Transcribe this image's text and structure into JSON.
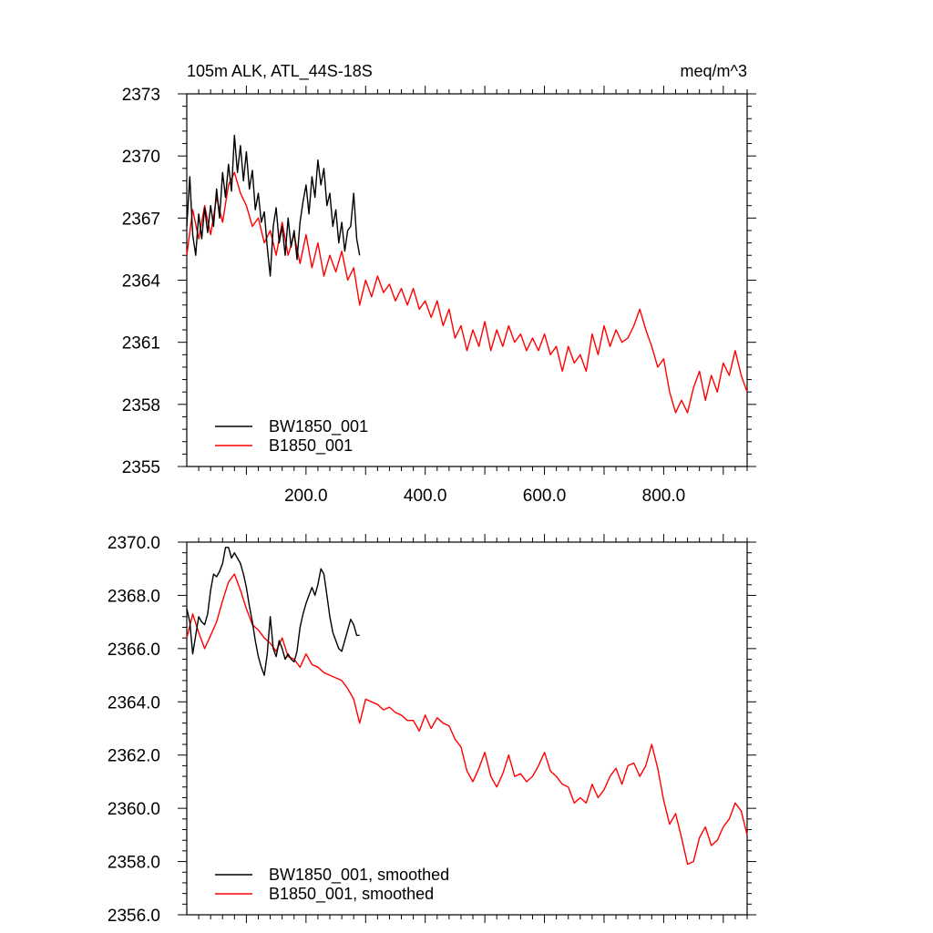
{
  "chart_data": [
    {
      "type": "line",
      "title": "105m ALK, ATL_44S-18S",
      "units": "meq/m^3",
      "xlim": [
        0,
        940
      ],
      "ylim": [
        2355,
        2373
      ],
      "xticks": [
        200,
        400,
        600,
        800
      ],
      "xtick_labels": [
        "200.0",
        "400.0",
        "600.0",
        "800.0"
      ],
      "yticks": [
        2355,
        2358,
        2361,
        2364,
        2367,
        2370,
        2373
      ],
      "ytick_labels": [
        "2355",
        "2358",
        "2361",
        "2364",
        "2367",
        "2370",
        "2373"
      ],
      "legend_position": "bottom-left",
      "series": [
        {
          "name": "BW1850_001",
          "color": "#000000",
          "x": [
            0,
            5,
            10,
            15,
            20,
            25,
            30,
            35,
            40,
            45,
            50,
            55,
            60,
            65,
            70,
            75,
            80,
            85,
            90,
            95,
            100,
            105,
            110,
            115,
            120,
            125,
            130,
            135,
            140,
            145,
            150,
            155,
            160,
            165,
            170,
            175,
            180,
            185,
            190,
            195,
            200,
            205,
            210,
            215,
            220,
            225,
            230,
            235,
            240,
            245,
            250,
            255,
            260,
            265,
            270,
            275,
            280,
            285,
            290
          ],
          "values": [
            2366.6,
            2369.0,
            2366.2,
            2365.2,
            2367.2,
            2366.0,
            2367.5,
            2366.3,
            2367.6,
            2366.6,
            2368.4,
            2367.0,
            2369.2,
            2368.0,
            2369.6,
            2368.3,
            2371.0,
            2369.2,
            2370.5,
            2368.8,
            2370.2,
            2368.4,
            2369.3,
            2367.4,
            2368.2,
            2366.8,
            2367.3,
            2365.6,
            2364.2,
            2366.6,
            2367.5,
            2365.8,
            2366.6,
            2365.2,
            2367.0,
            2365.6,
            2366.4,
            2365.0,
            2366.8,
            2367.8,
            2368.6,
            2367.2,
            2369.0,
            2368.0,
            2369.8,
            2368.6,
            2369.4,
            2367.6,
            2368.2,
            2366.6,
            2367.4,
            2365.8,
            2366.8,
            2365.4,
            2366.4,
            2366.6,
            2368.2,
            2366.0,
            2365.2
          ]
        },
        {
          "name": "B1850_001",
          "color": "#ff0000",
          "x": [
            0,
            10,
            20,
            30,
            40,
            50,
            60,
            70,
            80,
            90,
            100,
            110,
            120,
            130,
            140,
            150,
            160,
            170,
            180,
            190,
            200,
            210,
            220,
            230,
            240,
            250,
            260,
            270,
            280,
            290,
            300,
            310,
            320,
            330,
            340,
            350,
            360,
            370,
            380,
            390,
            400,
            410,
            420,
            430,
            440,
            450,
            460,
            470,
            480,
            490,
            500,
            510,
            520,
            530,
            540,
            550,
            560,
            570,
            580,
            590,
            600,
            610,
            620,
            630,
            640,
            650,
            660,
            670,
            680,
            690,
            700,
            710,
            720,
            730,
            740,
            750,
            760,
            770,
            780,
            790,
            800,
            810,
            820,
            830,
            840,
            850,
            860,
            870,
            880,
            890,
            900,
            910,
            920,
            930,
            940
          ],
          "values": [
            2365.2,
            2367.4,
            2366.0,
            2367.6,
            2366.2,
            2368.0,
            2366.8,
            2368.6,
            2369.2,
            2368.2,
            2367.6,
            2366.6,
            2367.0,
            2365.8,
            2366.4,
            2365.2,
            2366.8,
            2365.2,
            2366.2,
            2364.8,
            2366.2,
            2364.6,
            2365.8,
            2364.2,
            2365.2,
            2364.4,
            2365.4,
            2364.0,
            2364.6,
            2362.8,
            2364.0,
            2363.2,
            2364.2,
            2363.4,
            2363.8,
            2363.0,
            2363.6,
            2362.8,
            2363.6,
            2362.6,
            2363.0,
            2362.2,
            2363.0,
            2361.8,
            2362.6,
            2361.2,
            2361.8,
            2360.6,
            2361.6,
            2360.8,
            2362.0,
            2360.6,
            2361.6,
            2360.8,
            2361.8,
            2361.0,
            2361.4,
            2360.6,
            2361.2,
            2360.6,
            2361.4,
            2360.4,
            2360.8,
            2359.6,
            2360.8,
            2360.0,
            2360.4,
            2359.6,
            2361.4,
            2360.4,
            2361.8,
            2360.8,
            2361.6,
            2361.0,
            2361.2,
            2361.8,
            2362.6,
            2361.6,
            2360.8,
            2359.8,
            2360.2,
            2358.6,
            2357.6,
            2358.2,
            2357.6,
            2358.8,
            2359.6,
            2358.2,
            2359.4,
            2358.6,
            2360.0,
            2359.4,
            2360.6,
            2359.4,
            2358.6
          ]
        }
      ]
    },
    {
      "type": "line",
      "title": "",
      "xlim": [
        0,
        940
      ],
      "ylim": [
        2356,
        2370
      ],
      "yticks": [
        2356,
        2358,
        2360,
        2362,
        2364,
        2366,
        2368,
        2370
      ],
      "ytick_labels": [
        "2356.0",
        "2358.0",
        "2360.0",
        "2362.0",
        "2364.0",
        "2366.0",
        "2368.0",
        "2370.0"
      ],
      "legend_position": "bottom-left",
      "series": [
        {
          "name": "BW1850_001, smoothed",
          "color": "#000000",
          "x": [
            0,
            5,
            10,
            15,
            20,
            25,
            30,
            35,
            40,
            45,
            50,
            55,
            60,
            65,
            70,
            75,
            80,
            85,
            90,
            95,
            100,
            105,
            110,
            115,
            120,
            125,
            130,
            135,
            140,
            145,
            150,
            155,
            160,
            165,
            170,
            175,
            180,
            185,
            190,
            195,
            200,
            205,
            210,
            215,
            220,
            225,
            230,
            235,
            240,
            245,
            250,
            255,
            260,
            265,
            270,
            275,
            280,
            285,
            290
          ],
          "values": [
            2367.5,
            2367.0,
            2365.8,
            2366.5,
            2367.2,
            2367.0,
            2366.9,
            2367.3,
            2368.2,
            2368.8,
            2368.7,
            2368.9,
            2369.2,
            2369.8,
            2369.8,
            2369.4,
            2369.6,
            2369.4,
            2369.2,
            2368.8,
            2368.3,
            2367.6,
            2367.0,
            2366.3,
            2365.7,
            2365.3,
            2365.0,
            2365.8,
            2367.2,
            2366.0,
            2365.7,
            2366.3,
            2366.0,
            2365.6,
            2365.8,
            2365.6,
            2365.5,
            2365.9,
            2366.8,
            2367.3,
            2367.7,
            2368.0,
            2368.3,
            2368.0,
            2368.4,
            2369.0,
            2368.8,
            2368.0,
            2367.2,
            2366.6,
            2366.3,
            2366.0,
            2365.9,
            2366.3,
            2366.7,
            2367.1,
            2366.9,
            2366.5,
            2366.5
          ]
        },
        {
          "name": "B1850_001, smoothed",
          "color": "#ff0000",
          "x": [
            0,
            10,
            20,
            30,
            40,
            50,
            60,
            70,
            80,
            90,
            100,
            110,
            120,
            130,
            140,
            150,
            160,
            170,
            180,
            190,
            200,
            210,
            220,
            230,
            240,
            250,
            260,
            270,
            280,
            290,
            300,
            310,
            320,
            330,
            340,
            350,
            360,
            370,
            380,
            390,
            400,
            410,
            420,
            430,
            440,
            450,
            460,
            470,
            480,
            490,
            500,
            510,
            520,
            530,
            540,
            550,
            560,
            570,
            580,
            590,
            600,
            610,
            620,
            630,
            640,
            650,
            660,
            670,
            680,
            690,
            700,
            710,
            720,
            730,
            740,
            750,
            760,
            770,
            780,
            790,
            800,
            810,
            820,
            830,
            840,
            850,
            860,
            870,
            880,
            890,
            900,
            910,
            920,
            930,
            940
          ],
          "values": [
            2366.4,
            2367.3,
            2366.6,
            2366.0,
            2366.5,
            2367.0,
            2367.8,
            2368.5,
            2368.8,
            2368.2,
            2367.5,
            2366.9,
            2366.7,
            2366.4,
            2366.2,
            2365.9,
            2366.4,
            2365.7,
            2365.6,
            2365.3,
            2365.8,
            2365.4,
            2365.3,
            2365.1,
            2365.0,
            2364.9,
            2364.8,
            2364.5,
            2364.1,
            2363.2,
            2364.1,
            2364.0,
            2363.9,
            2363.7,
            2363.8,
            2363.6,
            2363.5,
            2363.3,
            2363.3,
            2362.9,
            2363.5,
            2363.0,
            2363.4,
            2363.2,
            2363.1,
            2362.6,
            2362.3,
            2361.4,
            2361.0,
            2361.5,
            2362.1,
            2361.2,
            2360.8,
            2361.3,
            2362.0,
            2361.2,
            2361.3,
            2361.0,
            2361.2,
            2361.6,
            2362.1,
            2361.4,
            2361.2,
            2360.9,
            2360.8,
            2360.2,
            2360.4,
            2360.2,
            2360.9,
            2360.4,
            2360.7,
            2361.2,
            2361.5,
            2360.9,
            2361.6,
            2361.7,
            2361.2,
            2361.6,
            2362.4,
            2361.5,
            2360.3,
            2359.4,
            2359.8,
            2358.9,
            2357.9,
            2358.0,
            2358.9,
            2359.3,
            2358.6,
            2358.8,
            2359.3,
            2359.6,
            2360.2,
            2359.9,
            2359.0
          ]
        }
      ]
    }
  ]
}
